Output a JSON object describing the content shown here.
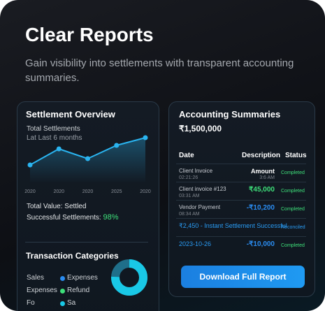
{
  "header": {
    "title": "Clear Reports",
    "subtitle": "Gain visibility into settlements with transparent accounting summaries."
  },
  "settlement_overview": {
    "title": "Settlement Overview",
    "label": "Total Settlements",
    "period": "Lat Last 6 months",
    "total_value": "Total Value: Settled",
    "success_label": "Successful Settlements:",
    "success_value": "98%"
  },
  "chart_data": {
    "type": "line",
    "categories": [
      "2020",
      "2020",
      "2020",
      "2025",
      "2020"
    ],
    "values": [
      10,
      33,
      19,
      38,
      49
    ],
    "color": "#2ab4f0"
  },
  "transaction_categories": {
    "title": "Transaction Categories",
    "rows": [
      [
        "Sales",
        "Expenses"
      ],
      [
        "Expenses",
        "Refund"
      ],
      [
        "Fo",
        "Sa"
      ]
    ]
  },
  "accounting_summaries": {
    "title": "Accounting Summaries",
    "total": "₹1,500,000",
    "columns": [
      "Date",
      "Description",
      "Status"
    ],
    "rows": [
      {
        "date": "Client Invoice",
        "time": "02:21:26",
        "amount": "Amount",
        "sub": "3:6 AM",
        "status": "Completed"
      },
      {
        "date": "Client invoice #123",
        "time": "03:31 AM",
        "amount": "₹45,000",
        "status": "Completed"
      },
      {
        "date": "Vendor Payment",
        "time": "08:34 AM",
        "amount": "-₹10,200",
        "status": "Completed"
      },
      {
        "date": "₹2,450 - Instant Settlement Successful",
        "status": "Reconciled"
      },
      {
        "date": "2023-10-26",
        "amount": "-₹10,000",
        "status": "Completed"
      }
    ],
    "button": "Download Full Report"
  }
}
